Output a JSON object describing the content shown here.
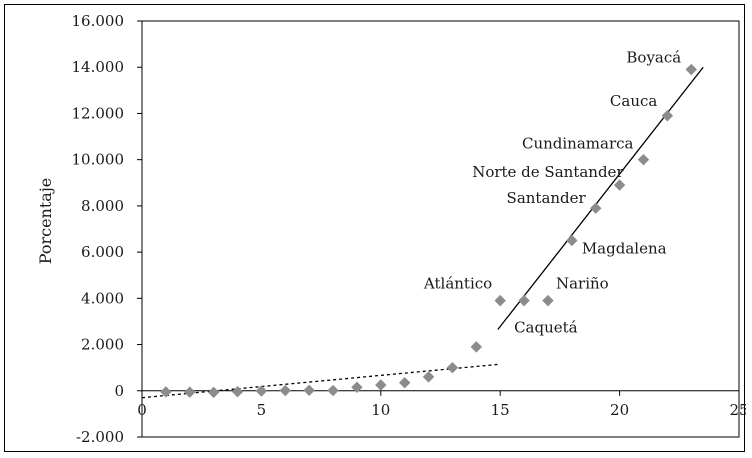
{
  "chart_data": {
    "type": "scatter",
    "title": "",
    "xlabel": "",
    "ylabel": "Porcentaje",
    "xlim": [
      0,
      25
    ],
    "ylim": [
      -2000,
      16000
    ],
    "x_ticks": [
      0,
      5,
      10,
      15,
      20,
      25
    ],
    "y_ticks": [
      -2000,
      0,
      2000,
      4000,
      6000,
      8000,
      10000,
      12000,
      14000,
      16000
    ],
    "x_tick_labels": [
      "0",
      "5",
      "10",
      "15",
      "20",
      "25"
    ],
    "y_tick_labels": [
      "-2.000",
      "0",
      "2.000",
      "4.000",
      "6.000",
      "8.000",
      "10.000",
      "12.000",
      "14.000",
      "16.000"
    ],
    "grid": false,
    "legend": "none",
    "marker_color": "#8c8c8c",
    "points": [
      {
        "x": 1,
        "y": -50,
        "label": ""
      },
      {
        "x": 2,
        "y": -60,
        "label": ""
      },
      {
        "x": 3,
        "y": -70,
        "label": ""
      },
      {
        "x": 4,
        "y": -40,
        "label": ""
      },
      {
        "x": 5,
        "y": -10,
        "label": ""
      },
      {
        "x": 6,
        "y": 10,
        "label": ""
      },
      {
        "x": 7,
        "y": 20,
        "label": ""
      },
      {
        "x": 8,
        "y": 10,
        "label": ""
      },
      {
        "x": 9,
        "y": 150,
        "label": ""
      },
      {
        "x": 10,
        "y": 250,
        "label": ""
      },
      {
        "x": 11,
        "y": 350,
        "label": ""
      },
      {
        "x": 12,
        "y": 600,
        "label": ""
      },
      {
        "x": 13,
        "y": 1000,
        "label": ""
      },
      {
        "x": 14,
        "y": 1900,
        "label": ""
      },
      {
        "x": 15,
        "y": 3900,
        "label": "Atlántico"
      },
      {
        "x": 16,
        "y": 3900,
        "label": "Caquetá"
      },
      {
        "x": 17,
        "y": 3900,
        "label": "Nariño"
      },
      {
        "x": 18,
        "y": 6500,
        "label": "Magdalena"
      },
      {
        "x": 19,
        "y": 7900,
        "label": "Santander"
      },
      {
        "x": 20,
        "y": 8900,
        "label": "Norte de Santander"
      },
      {
        "x": 21,
        "y": 10000,
        "label": "Cundinamarca"
      },
      {
        "x": 22,
        "y": 11900,
        "label": "Cauca"
      },
      {
        "x": 23,
        "y": 13900,
        "label": "Boyacá"
      }
    ],
    "trend_lines": [
      {
        "style": "dotted",
        "from": [
          0,
          -300
        ],
        "to": [
          15,
          1150
        ]
      },
      {
        "style": "solid",
        "from": [
          14.9,
          2650
        ],
        "to": [
          23.5,
          14000
        ]
      }
    ]
  }
}
